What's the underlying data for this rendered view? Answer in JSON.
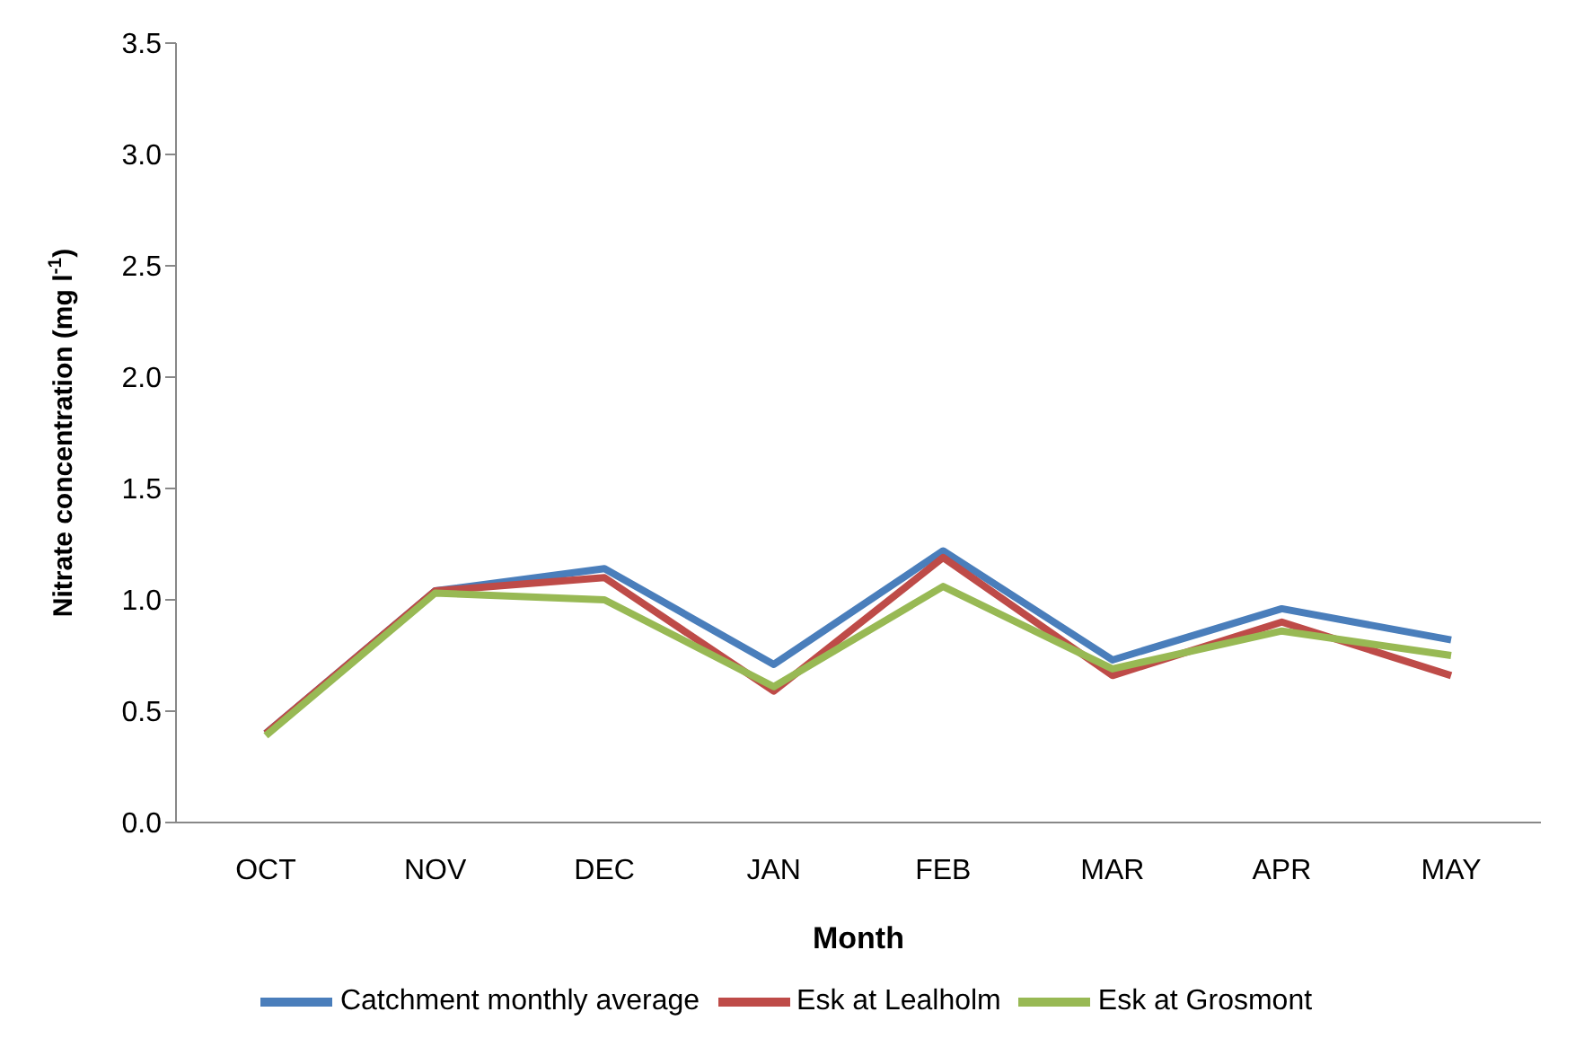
{
  "chart_data": {
    "type": "line",
    "xlabel": "Month",
    "ylabel": "Nitrate concentration (mg l$^{-1}$)",
    "categories": [
      "OCT",
      "NOV",
      "DEC",
      "JAN",
      "FEB",
      "MAR",
      "APR",
      "MAY"
    ],
    "series": [
      {
        "name": "Catchment monthly average",
        "color": "#4a7ebb",
        "values": [
          0.4,
          1.04,
          1.14,
          0.71,
          1.22,
          0.73,
          0.96,
          0.82
        ]
      },
      {
        "name": "Esk at Lealholm",
        "color": "#be4b48",
        "values": [
          0.4,
          1.04,
          1.1,
          0.59,
          1.19,
          0.66,
          0.9,
          0.66
        ]
      },
      {
        "name": "Esk at Grosmont",
        "color": "#98b954",
        "values": [
          0.39,
          1.03,
          1.0,
          0.61,
          1.06,
          0.69,
          0.86,
          0.75
        ]
      }
    ],
    "ylim": [
      0,
      3.5
    ],
    "yticks": [
      {
        "value": 0,
        "label": "0.0"
      },
      {
        "value": 0.5,
        "label": "0.5"
      },
      {
        "value": 1,
        "label": "1.0"
      },
      {
        "value": 1.5,
        "label": "1.5"
      },
      {
        "value": 2,
        "label": "2.0"
      },
      {
        "value": 2.5,
        "label": "2.5"
      },
      {
        "value": 3,
        "label": "3.0"
      },
      {
        "value": 3.5,
        "label": "3.5"
      }
    ],
    "grid": false,
    "legend": "bottom",
    "marker": "none",
    "line_style": "solid"
  }
}
